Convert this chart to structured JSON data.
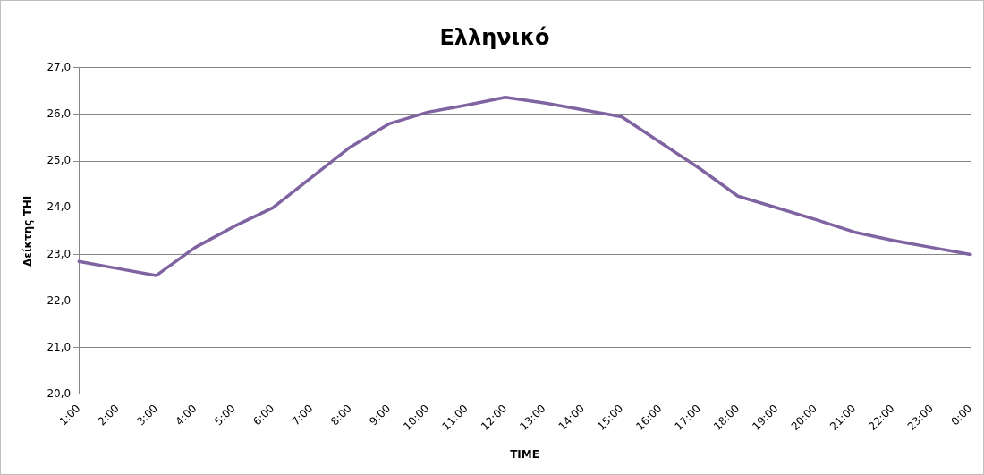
{
  "chart_data": {
    "type": "line",
    "title": "Ελληνικό",
    "xlabel": "TIME",
    "ylabel": "Δείκτης THI",
    "categories": [
      "1:00",
      "2:00",
      "3:00",
      "4:00",
      "5:00",
      "6:00",
      "7:00",
      "8:00",
      "9:00",
      "10:00",
      "11:00",
      "12:00",
      "13:00",
      "14:00",
      "15:00",
      "16:00",
      "17:00",
      "18:00",
      "19:00",
      "20:00",
      "21:00",
      "22:00",
      "23:00",
      "0:00"
    ],
    "series": [
      {
        "color": "#8064a2",
        "values": [
          22.85,
          22.7,
          22.55,
          23.15,
          23.6,
          24.0,
          24.65,
          25.3,
          25.8,
          26.05,
          26.2,
          26.37,
          26.25,
          26.1,
          25.95,
          25.4,
          24.85,
          24.25,
          24.0,
          23.75,
          23.48,
          23.3,
          23.15,
          23.0
        ]
      }
    ],
    "ylim": [
      20,
      27
    ],
    "yticks": [
      {
        "value": 20,
        "label": "20,0"
      },
      {
        "value": 21,
        "label": "21,0"
      },
      {
        "value": 22,
        "label": "22,0"
      },
      {
        "value": 23,
        "label": "23,0"
      },
      {
        "value": 24,
        "label": "24,0"
      },
      {
        "value": 25,
        "label": "25,0"
      },
      {
        "value": 26,
        "label": "26,0"
      },
      {
        "value": 27,
        "label": "27,0"
      }
    ],
    "grid": "y",
    "legend": false,
    "marker": "none",
    "line_style": "solid"
  }
}
